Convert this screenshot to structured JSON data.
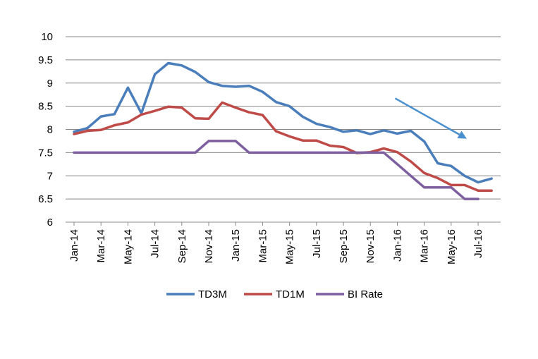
{
  "chart_data": {
    "type": "line",
    "x": [
      "Jan-14",
      "Feb-14",
      "Mar-14",
      "Apr-14",
      "May-14",
      "Jun-14",
      "Jul-14",
      "Aug-14",
      "Sep-14",
      "Oct-14",
      "Nov-14",
      "Dec-14",
      "Jan-15",
      "Feb-15",
      "Mar-15",
      "Apr-15",
      "May-15",
      "Jun-15",
      "Jul-15",
      "Aug-15",
      "Sep-15",
      "Oct-15",
      "Nov-15",
      "Dec-15",
      "Jan-16",
      "Feb-16",
      "Mar-16",
      "Apr-16",
      "May-16",
      "Jun-16",
      "Jul-16",
      "Aug-16"
    ],
    "x_tick_labels": [
      "Jan-14",
      "Mar-14",
      "May-14",
      "Jul-14",
      "Sep-14",
      "Nov-14",
      "Jan-15",
      "Mar-15",
      "May-15",
      "Jul-15",
      "Sep-15",
      "Nov-15",
      "Jan-16",
      "Mar-16",
      "May-16",
      "Jul-16"
    ],
    "y_tick_labels": [
      "6",
      "6.5",
      "7",
      "7.5",
      "8",
      "8.5",
      "9",
      "9.5",
      "10"
    ],
    "ylim": [
      6,
      10
    ],
    "grid": true,
    "legend_position": "bottom",
    "series": [
      {
        "name": "TD3M",
        "color": "#4a7ebb",
        "values": [
          7.95,
          8.03,
          8.28,
          8.33,
          8.9,
          8.35,
          9.19,
          9.43,
          9.38,
          9.24,
          9.02,
          8.94,
          8.92,
          8.94,
          8.81,
          8.59,
          8.5,
          8.27,
          8.12,
          8.05,
          7.95,
          7.98,
          7.9,
          7.98,
          7.91,
          7.97,
          7.74,
          7.27,
          7.21,
          7.0,
          6.86,
          6.94
        ]
      },
      {
        "name": "TD1M",
        "color": "#be4b48",
        "values": [
          7.9,
          7.97,
          7.99,
          8.09,
          8.15,
          8.32,
          8.4,
          8.49,
          8.47,
          8.24,
          8.23,
          8.58,
          8.47,
          8.37,
          8.31,
          7.96,
          7.85,
          7.76,
          7.76,
          7.65,
          7.62,
          7.49,
          7.51,
          7.59,
          7.51,
          7.31,
          7.06,
          6.95,
          6.8,
          6.8,
          6.68,
          6.68
        ]
      },
      {
        "name": "BI Rate",
        "color": "#7d5fa0",
        "values": [
          7.5,
          7.5,
          7.5,
          7.5,
          7.5,
          7.5,
          7.5,
          7.5,
          7.5,
          7.5,
          7.75,
          7.75,
          7.75,
          7.5,
          7.5,
          7.5,
          7.5,
          7.5,
          7.5,
          7.5,
          7.5,
          7.5,
          7.5,
          7.5,
          7.25,
          7.0,
          6.75,
          6.75,
          6.75,
          6.5,
          6.5,
          null
        ]
      }
    ],
    "annotation": {
      "type": "arrow",
      "color": "#4a90d0",
      "from": {
        "x": "Jan-16",
        "y": 8.67
      },
      "to": {
        "x": "Jun-16",
        "y": 7.8
      }
    }
  }
}
